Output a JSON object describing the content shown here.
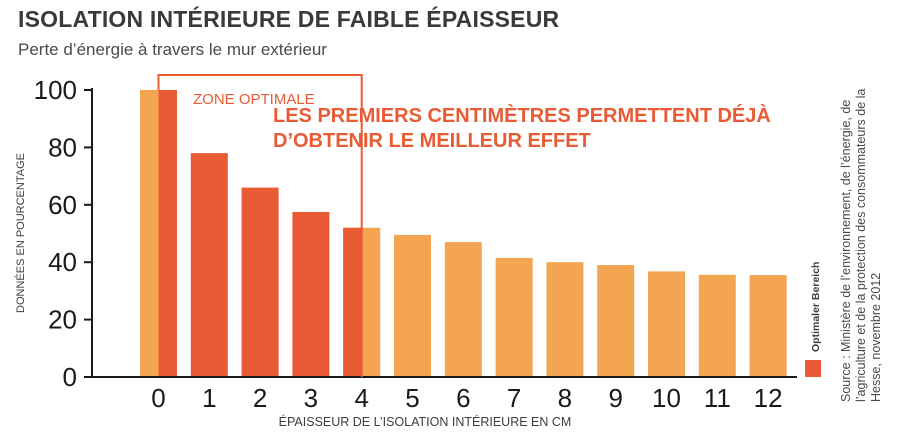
{
  "chart_data": {
    "type": "bar",
    "title": "ISOLATION INTÉRIEURE DE FAIBLE ÉPAISSEUR",
    "subtitle": "Perte d’énergie à travers le mur extérieur",
    "xlabel": "ÉPAISSEUR DE L’ISOLATION INTÉRIEURE EN CM",
    "ylabel": "DONNÉES EN POURCENTAGE",
    "ylim": [
      0,
      100
    ],
    "yticks": [
      0,
      20,
      40,
      60,
      80,
      100
    ],
    "grid": false,
    "categories": [
      "0",
      "1",
      "2",
      "3",
      "4",
      "5",
      "6",
      "7",
      "8",
      "9",
      "10",
      "11",
      "12"
    ],
    "series": [
      {
        "values": [
          100,
          78,
          66,
          57.5,
          52,
          49.5,
          47,
          41.5,
          40,
          39,
          36.8,
          35.6,
          35.5
        ]
      }
    ],
    "optimal_zone": {
      "label": "ZONE OPTIMALE",
      "from": "0",
      "to": "4",
      "headline_lines": [
        "LES PREMIERS CENTIMÈTRES PERMETTENT DÉJÀ",
        "D’OBTENIR LE MEILLEUR EFFET"
      ]
    },
    "legend": {
      "label": "Optimaler Bereich",
      "position": "bottom-right"
    },
    "colors": {
      "bar": "#f3a552",
      "optimal": "#e85b34",
      "axis": "#1a1a1a",
      "frame": "#e85b34",
      "text": "#3d3d3d"
    }
  },
  "source": "Source : Ministère de l’environnement, de l’énergie, de l’agriculture et de la protection des consommateurs de la Hesse, novembre 2012"
}
